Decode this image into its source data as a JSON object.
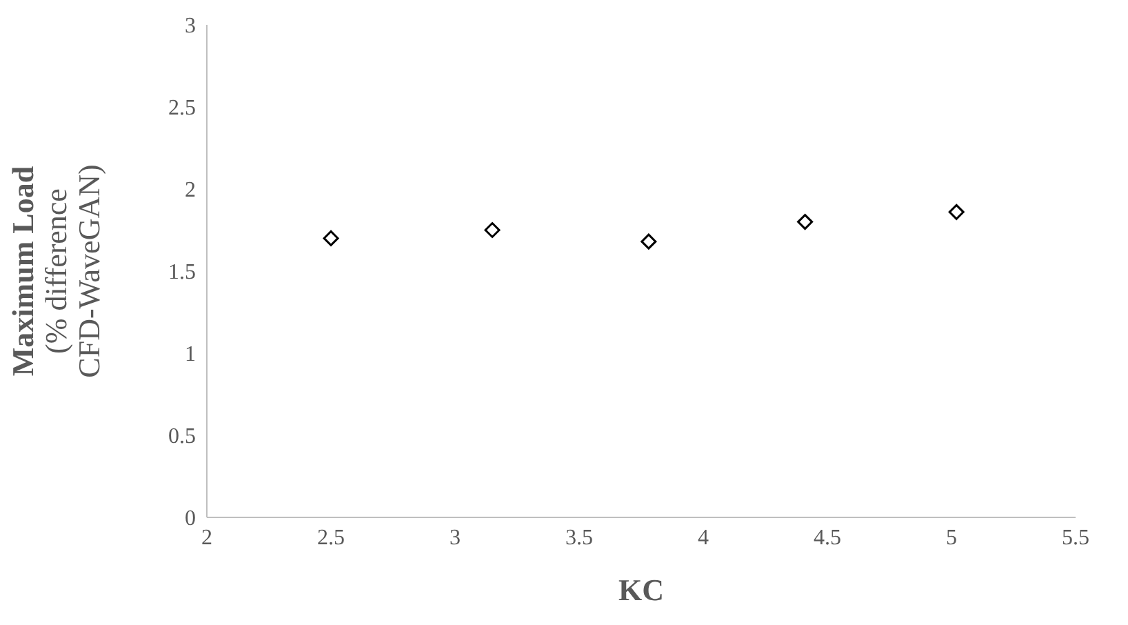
{
  "chart_data": {
    "type": "scatter",
    "xlabel": "KC",
    "ylabel": "Maximum Load\n(% difference\nCFD-WaveGAN)",
    "x": [
      2.5,
      3.15,
      3.78,
      4.41,
      5.02
    ],
    "series": [
      {
        "color": "#000000",
        "values": [
          1.7,
          1.75,
          1.68,
          1.8,
          1.86
        ]
      }
    ],
    "xlim": [
      2,
      5.5
    ],
    "xticks": [
      2,
      2.5,
      3,
      3.5,
      4,
      4.5,
      5,
      5.5
    ],
    "ylim": [
      0,
      3
    ],
    "yticks": [
      0,
      0.5,
      1,
      1.5,
      2,
      2.5,
      3
    ],
    "marker": "diamond"
  }
}
